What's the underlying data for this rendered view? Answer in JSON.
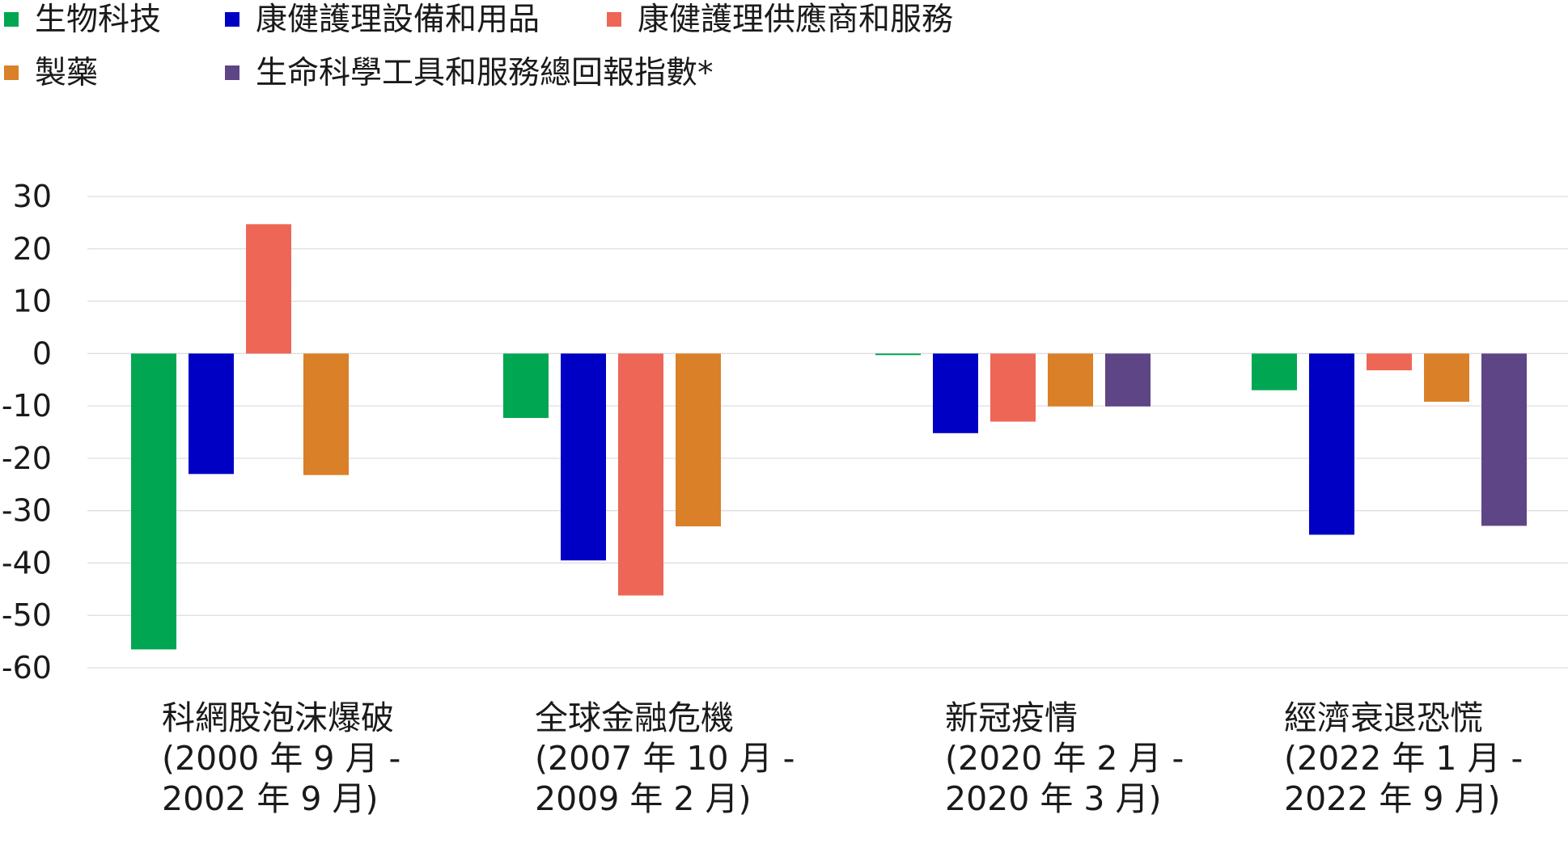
{
  "chart_data": {
    "type": "bar",
    "title": "",
    "xlabel": "",
    "ylabel": "",
    "ylim": [
      -60,
      30
    ],
    "yticks": [
      30,
      20,
      10,
      0,
      -10,
      -20,
      -30,
      -40,
      -50,
      -60
    ],
    "grid": true,
    "legend_position": "top-left",
    "categories": [
      {
        "lines": [
          "科網股泡沫爆破",
          "(2000 年 9 月 -",
          "2002 年 9 月)"
        ]
      },
      {
        "lines": [
          "全球金融危機",
          "(2007 年 10 月 -",
          "2009 年 2 月)"
        ]
      },
      {
        "lines": [
          "新冠疫情",
          "(2020 年 2 月 -",
          "2020 年 3 月)"
        ]
      },
      {
        "lines": [
          "經濟衰退恐慌",
          "(2022 年 1 月 -",
          "2022 年 9 月)"
        ]
      }
    ],
    "series": [
      {
        "name": "生物科技",
        "color": "#00a651",
        "values": [
          -56.5,
          -12.3,
          -0.3,
          -7.0
        ]
      },
      {
        "name": "康健護理設備和用品",
        "color": "#0000c4",
        "values": [
          -23.0,
          -39.5,
          -15.2,
          -34.6
        ]
      },
      {
        "name": "康健護理供應商和服務",
        "color": "#ee6655",
        "values": [
          24.7,
          -46.2,
          -13.0,
          -3.2
        ]
      },
      {
        "name": "製藥",
        "color": "#d98028",
        "values": [
          -23.2,
          -33.0,
          -10.1,
          -9.2
        ]
      },
      {
        "name": "生命科學工具和服務總回報指數*",
        "color": "#5e4585",
        "values": [
          null,
          null,
          -10.1,
          -32.9
        ]
      }
    ]
  }
}
